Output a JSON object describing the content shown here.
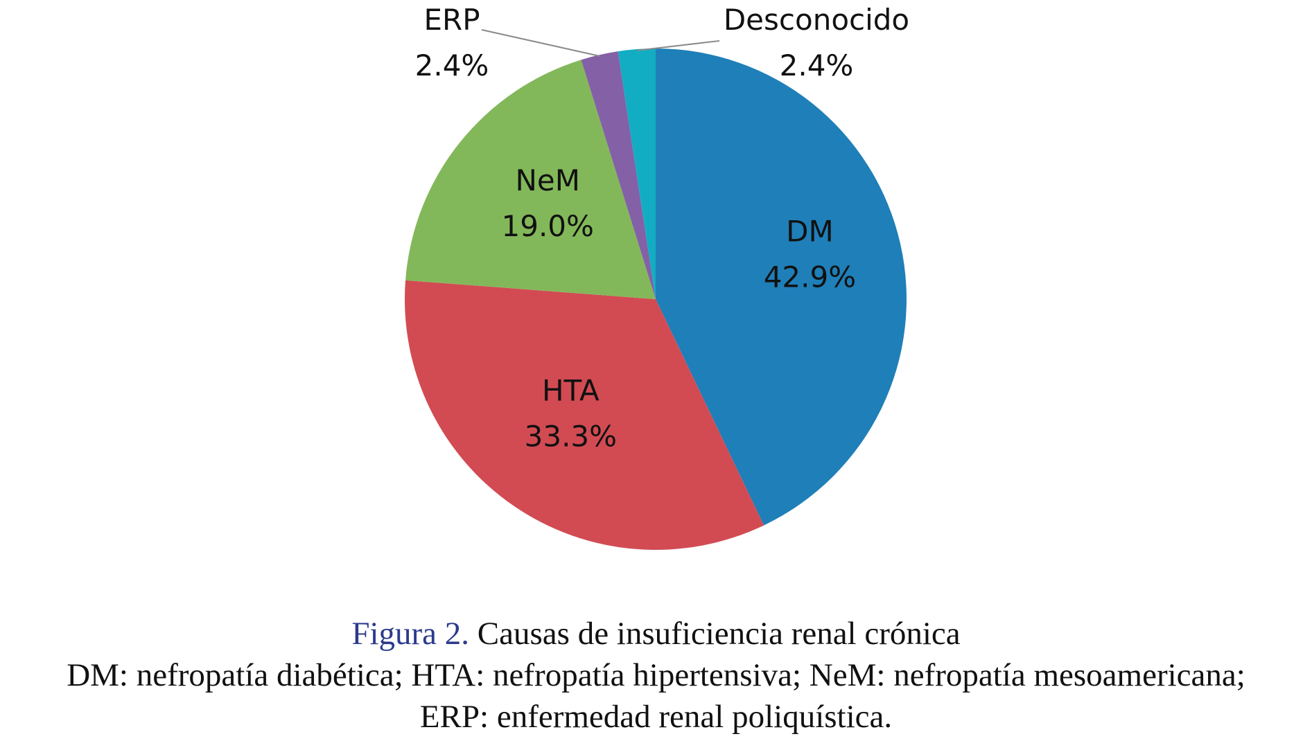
{
  "chart_data": {
    "type": "pie",
    "slices": [
      {
        "label": "DM",
        "value": 42.9,
        "value_label": "42.9%",
        "color": "#1f7fb8"
      },
      {
        "label": "HTA",
        "value": 33.3,
        "value_label": "33.3%",
        "color": "#d24b53"
      },
      {
        "label": "NeM",
        "value": 19.0,
        "value_label": "19.0%",
        "color": "#83b85a"
      },
      {
        "label": "ERP",
        "value": 2.4,
        "value_label": "2.4%",
        "color": "#8460a6"
      },
      {
        "label": "Desconocido",
        "value": 2.4,
        "value_label": "2.4%",
        "color": "#13adc3"
      }
    ],
    "start": "12 o'clock",
    "direction": "clockwise",
    "legend": "none",
    "label_style": "category name and percentage on each slice; leader lines for the two smallest slices"
  },
  "caption": {
    "figure_number": "Figura 2.",
    "title": "Causas de insuficiencia renal crónica",
    "abbrev_line1": "DM: nefropatía diabética; HTA: nefropatía hipertensiva; NeM: nefropatía mesoamericana;",
    "abbrev_line2": "ERP: enfermedad renal poliquística."
  }
}
